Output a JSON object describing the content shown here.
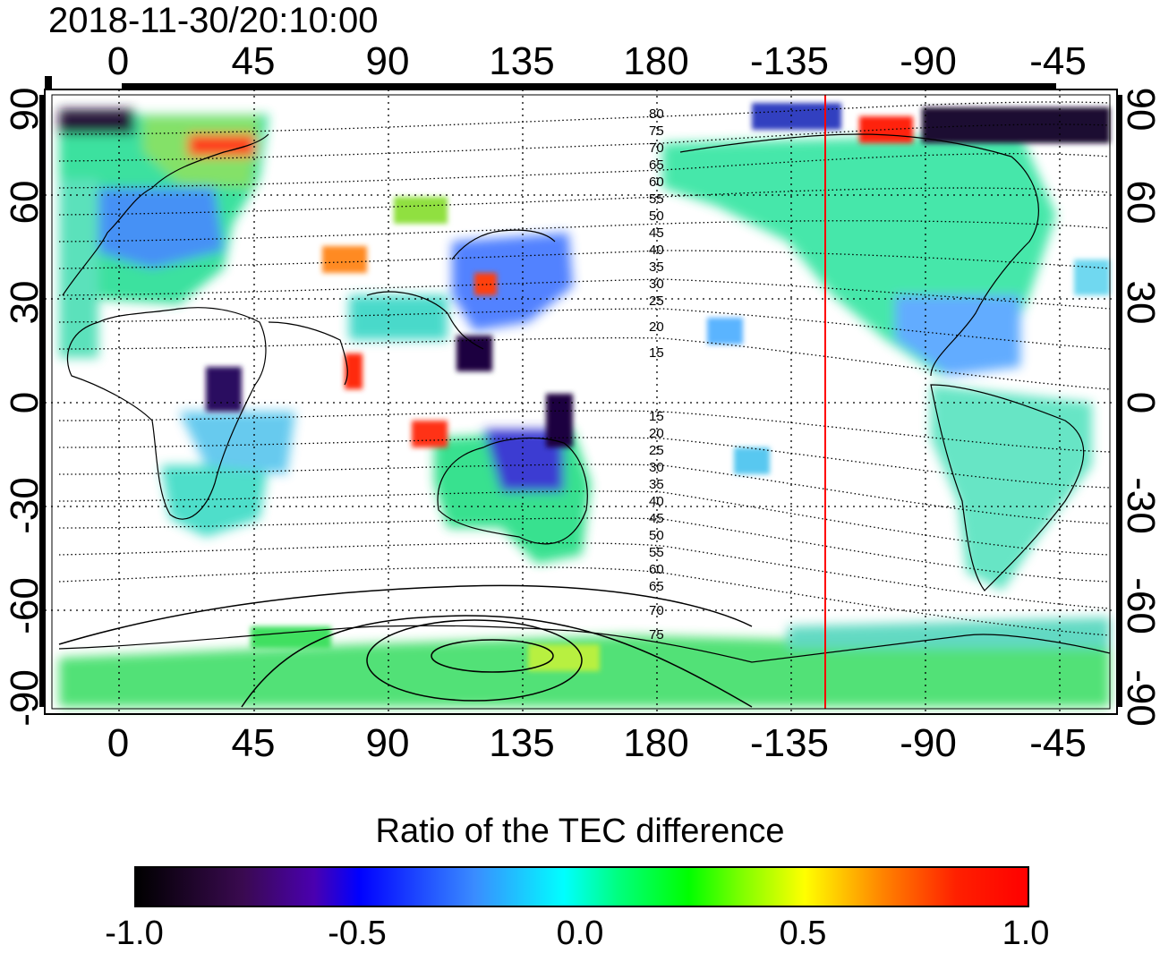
{
  "title": "2018-11-30/20:10:00",
  "x_ticks": [
    "0",
    "45",
    "90",
    "135",
    "180",
    "-135",
    "-90",
    "-45"
  ],
  "y_ticks_left": [
    "90",
    "60",
    "30",
    "0",
    "-30",
    "-60",
    "-90"
  ],
  "y_ticks_right": [
    "90",
    "60",
    "30",
    "0",
    "-30",
    "-60",
    "-90"
  ],
  "mlat_labels_north": [
    "80",
    "75",
    "70",
    "65",
    "60",
    "55",
    "50",
    "45",
    "40",
    "35",
    "30",
    "25",
    "20",
    "15"
  ],
  "mlat_labels_south": [
    "15",
    "20",
    "25",
    "30",
    "35",
    "40",
    "45",
    "50",
    "55",
    "60",
    "65",
    "70",
    "75"
  ],
  "colorbar": {
    "title": "Ratio of the TEC difference",
    "tick_labels": [
      "-1.0",
      "-0.5",
      "0.0",
      "0.5",
      "1.0"
    ],
    "range": [
      -1.0,
      1.0
    ],
    "colors": [
      "#000000",
      "#4a00b0",
      "#0000ff",
      "#00ffff",
      "#00ff00",
      "#ffff00",
      "#ff8000",
      "#ff0000"
    ]
  },
  "terminator_longitude": -122
}
